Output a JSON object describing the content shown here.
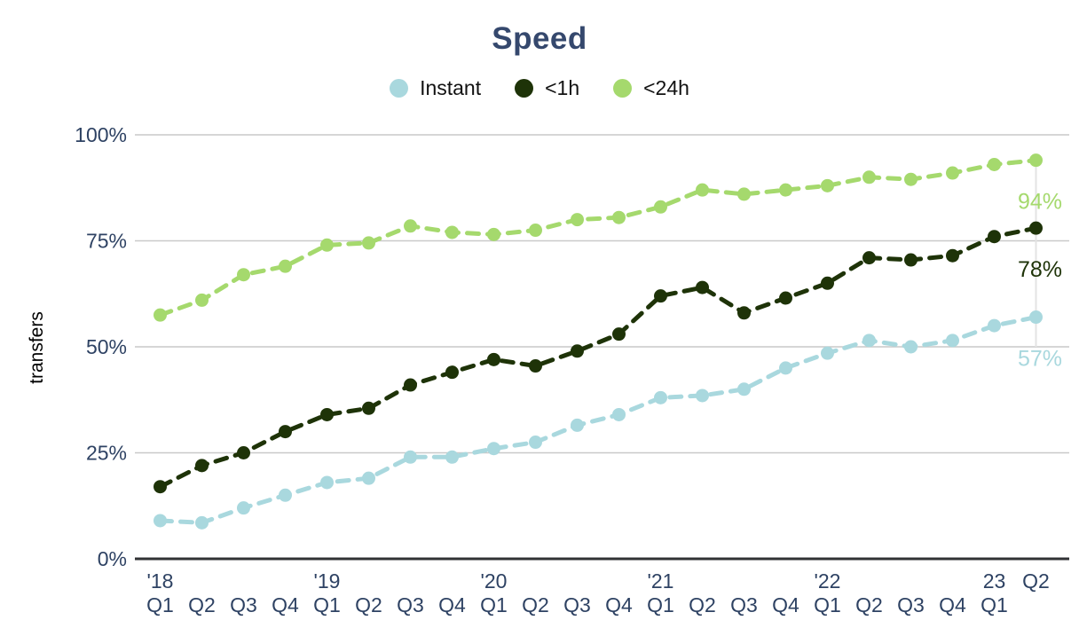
{
  "title": "Speed",
  "colors": {
    "title_text": "#35486d",
    "tick_label": "#2e4263",
    "axis_line": "#303234",
    "gridline": "#c9c9c9",
    "end_guide_line": "#e3e3e3",
    "ylabel_text": "#000000"
  },
  "chart_data": {
    "type": "line",
    "title": "Speed",
    "ylabel": "transfers",
    "xlabel": "",
    "ylim": [
      0,
      100
    ],
    "grid": "horizontal",
    "legend_position": "top-center",
    "line_dash": "dashed",
    "marker": "circle",
    "yticks": [
      {
        "value": 0,
        "label": "0%"
      },
      {
        "value": 25,
        "label": "25%"
      },
      {
        "value": 50,
        "label": "50%"
      },
      {
        "value": 75,
        "label": "75%"
      },
      {
        "value": 100,
        "label": "100%"
      }
    ],
    "categories": [
      "'18 Q1",
      "'18 Q2",
      "'18 Q3",
      "'18 Q4",
      "'19 Q1",
      "'19 Q2",
      "'19 Q3",
      "'19 Q4",
      "'20 Q1",
      "'20 Q2",
      "'20 Q3",
      "'20 Q4",
      "'21 Q1",
      "'21 Q2",
      "'21 Q3",
      "'21 Q4",
      "'22 Q1",
      "'22 Q2",
      "'22 Q3",
      "'22 Q4",
      "23 Q1",
      "23 Q2"
    ],
    "xticks": [
      {
        "top": "'18",
        "bottom": "Q1"
      },
      {
        "top": "",
        "bottom": "Q2"
      },
      {
        "top": "",
        "bottom": "Q3"
      },
      {
        "top": "",
        "bottom": "Q4"
      },
      {
        "top": "'19",
        "bottom": "Q1"
      },
      {
        "top": "",
        "bottom": "Q2"
      },
      {
        "top": "",
        "bottom": "Q3"
      },
      {
        "top": "",
        "bottom": "Q4"
      },
      {
        "top": "'20",
        "bottom": "Q1"
      },
      {
        "top": "",
        "bottom": "Q2"
      },
      {
        "top": "",
        "bottom": "Q3"
      },
      {
        "top": "",
        "bottom": "Q4"
      },
      {
        "top": "'21",
        "bottom": "Q1"
      },
      {
        "top": "",
        "bottom": "Q2"
      },
      {
        "top": "",
        "bottom": "Q3"
      },
      {
        "top": "",
        "bottom": "Q4"
      },
      {
        "top": "'22",
        "bottom": "Q1"
      },
      {
        "top": "",
        "bottom": "Q2"
      },
      {
        "top": "",
        "bottom": "Q3"
      },
      {
        "top": "",
        "bottom": "Q4"
      },
      {
        "top": "23",
        "bottom": "Q1"
      },
      {
        "top": "Q2",
        "bottom": ""
      }
    ],
    "series": [
      {
        "name": "Instant",
        "color": "#a9d8de",
        "end_label": "57%",
        "values": [
          9,
          8.5,
          12,
          15,
          18,
          19,
          24,
          24,
          26,
          27.5,
          31.5,
          34,
          38,
          38.5,
          40,
          45,
          48.5,
          51.5,
          50,
          51.5,
          55,
          57
        ]
      },
      {
        "name": "<1h",
        "color": "#1e3308",
        "end_label": "78%",
        "values": [
          17,
          22,
          25,
          30,
          34,
          35.5,
          41,
          44,
          47,
          45.5,
          49,
          53,
          62,
          64,
          58,
          61.5,
          65,
          71,
          70.5,
          71.5,
          76,
          78
        ]
      },
      {
        "name": "<24h",
        "color": "#a5d96d",
        "end_label": "94%",
        "values": [
          57.5,
          61,
          67,
          69,
          74,
          74.5,
          78.5,
          77,
          76.5,
          77.5,
          80,
          80.5,
          83,
          87,
          86,
          87,
          88,
          90,
          89.5,
          91,
          93,
          94
        ]
      }
    ]
  }
}
